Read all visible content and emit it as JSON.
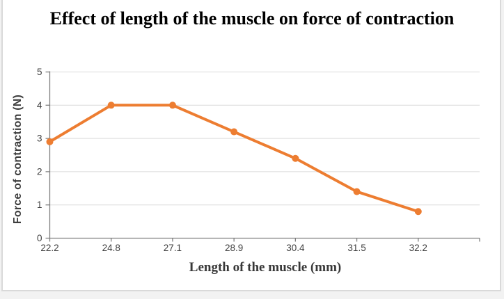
{
  "chart_data": {
    "type": "line",
    "title": "Effect of length of the muscle on force of contraction",
    "xlabel": "Length of the muscle (mm)",
    "ylabel": "Force of contraction (N)",
    "categories": [
      "22.2",
      "24.8",
      "27.1",
      "28.9",
      "30.4",
      "31.5",
      "32.2"
    ],
    "series": [
      {
        "name": "Force of contraction",
        "values": [
          2.9,
          4,
          4,
          3.2,
          2.4,
          1.4,
          0.8
        ]
      }
    ],
    "ylim": [
      0,
      5
    ],
    "y_ticks": [
      0,
      1,
      2,
      3,
      4,
      5
    ],
    "grid": "horizontal",
    "legend": "none",
    "marker": "circle"
  },
  "colors": {
    "series_line": "#ED7D31",
    "marker_fill": "#ED7D31",
    "gridline": "#D9D9D9",
    "axis_line": "#7F7F7F",
    "tick_label": "#404040",
    "chart_border": "#D9D9D9",
    "background": "#FFFFFF"
  }
}
